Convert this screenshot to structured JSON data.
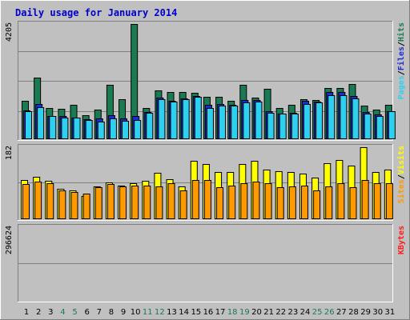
{
  "title": "Daily usage for January 2014",
  "colors": {
    "background": "#c0c0c0",
    "panel": "#c0c0c0",
    "title": "#0000cc",
    "hits": "#1a7a52",
    "files": "#1c2bd8",
    "pages": "#2ed0f0",
    "visits": "#ffff00",
    "sites": "#ff9900",
    "kbytes": "#ff1a1a",
    "weekend": "#1a7a52",
    "weekday": "#000000"
  },
  "chart_data": [
    {
      "type": "bar",
      "name": "hits-files-pages",
      "ymax_label": "4205",
      "ymax": 4205,
      "legend": [
        "Pages",
        "/",
        "Files",
        "/",
        "Hits"
      ],
      "categories": [
        "1",
        "2",
        "3",
        "4",
        "5",
        "6",
        "7",
        "8",
        "9",
        "10",
        "11",
        "12",
        "13",
        "14",
        "15",
        "16",
        "17",
        "18",
        "19",
        "20",
        "21",
        "22",
        "23",
        "24",
        "25",
        "26",
        "27",
        "28",
        "29",
        "30",
        "31"
      ],
      "series": [
        {
          "name": "Hits",
          "values": [
            1415,
            2245,
            1150,
            1110,
            1245,
            888,
            1090,
            1995,
            1460,
            4205,
            1140,
            1780,
            1735,
            1735,
            1705,
            1535,
            1535,
            1390,
            1990,
            1505,
            1835,
            1135,
            1260,
            1460,
            1430,
            1860,
            1860,
            2020,
            1225,
            1075,
            1250
          ]
        },
        {
          "name": "Files",
          "values": [
            1060,
            1280,
            850,
            860,
            800,
            740,
            760,
            880,
            760,
            835,
            990,
            1530,
            1410,
            1500,
            1585,
            1250,
            1295,
            1250,
            1445,
            1425,
            1030,
            935,
            950,
            1400,
            1380,
            1730,
            1710,
            1580,
            1000,
            900,
            1015
          ]
        },
        {
          "name": "Pages",
          "values": [
            1030,
            1170,
            850,
            800,
            775,
            690,
            655,
            760,
            670,
            700,
            950,
            1470,
            1380,
            1450,
            1535,
            1150,
            1235,
            1225,
            1335,
            1375,
            970,
            920,
            930,
            1285,
            1335,
            1620,
            1595,
            1490,
            945,
            850,
            1010
          ]
        }
      ]
    },
    {
      "type": "bar",
      "name": "visits-sites",
      "ymax_label": "182",
      "ymax": 182,
      "legend": [
        "Sites",
        "/",
        "Visits"
      ],
      "categories": [
        "1",
        "2",
        "3",
        "4",
        "5",
        "6",
        "7",
        "8",
        "9",
        "10",
        "11",
        "12",
        "13",
        "14",
        "15",
        "16",
        "17",
        "18",
        "19",
        "20",
        "21",
        "22",
        "23",
        "24",
        "25",
        "26",
        "27",
        "28",
        "29",
        "30",
        "31"
      ],
      "series": [
        {
          "name": "Visits",
          "values": [
            100,
            108,
            97,
            76,
            72,
            58,
            82,
            93,
            85,
            90,
            97,
            118,
            102,
            82,
            147,
            140,
            120,
            120,
            140,
            147,
            125,
            122,
            120,
            115,
            105,
            142,
            150,
            135,
            182,
            120,
            125
          ]
        },
        {
          "name": "Sites",
          "values": [
            88,
            95,
            92,
            72,
            68,
            64,
            80,
            88,
            82,
            85,
            85,
            82,
            90,
            72,
            100,
            100,
            80,
            85,
            90,
            95,
            92,
            80,
            82,
            85,
            72,
            82,
            90,
            80,
            100,
            92,
            90
          ]
        }
      ]
    },
    {
      "type": "bar",
      "name": "kbytes",
      "ymax_label": "296624",
      "ymax": 296624,
      "legend": [
        "KBytes"
      ],
      "categories": [
        "1",
        "2",
        "3",
        "4",
        "5",
        "6",
        "7",
        "8",
        "9",
        "10",
        "11",
        "12",
        "13",
        "14",
        "15",
        "16",
        "17",
        "18",
        "19",
        "20",
        "21",
        "22",
        "23",
        "24",
        "25",
        "26",
        "27",
        "28",
        "29",
        "30",
        "31"
      ],
      "series": [
        {
          "name": "KBytes",
          "values": [
            120,
            170,
            65,
            105,
            210,
            98,
            117,
            132,
            167,
            200,
            136,
            127,
            172,
            132,
            117,
            172,
            131,
            180,
            210,
            249,
            280,
            197,
            140,
            197,
            172,
            175,
            181,
            296,
            162,
            147,
            143
          ]
        }
      ]
    }
  ]
}
